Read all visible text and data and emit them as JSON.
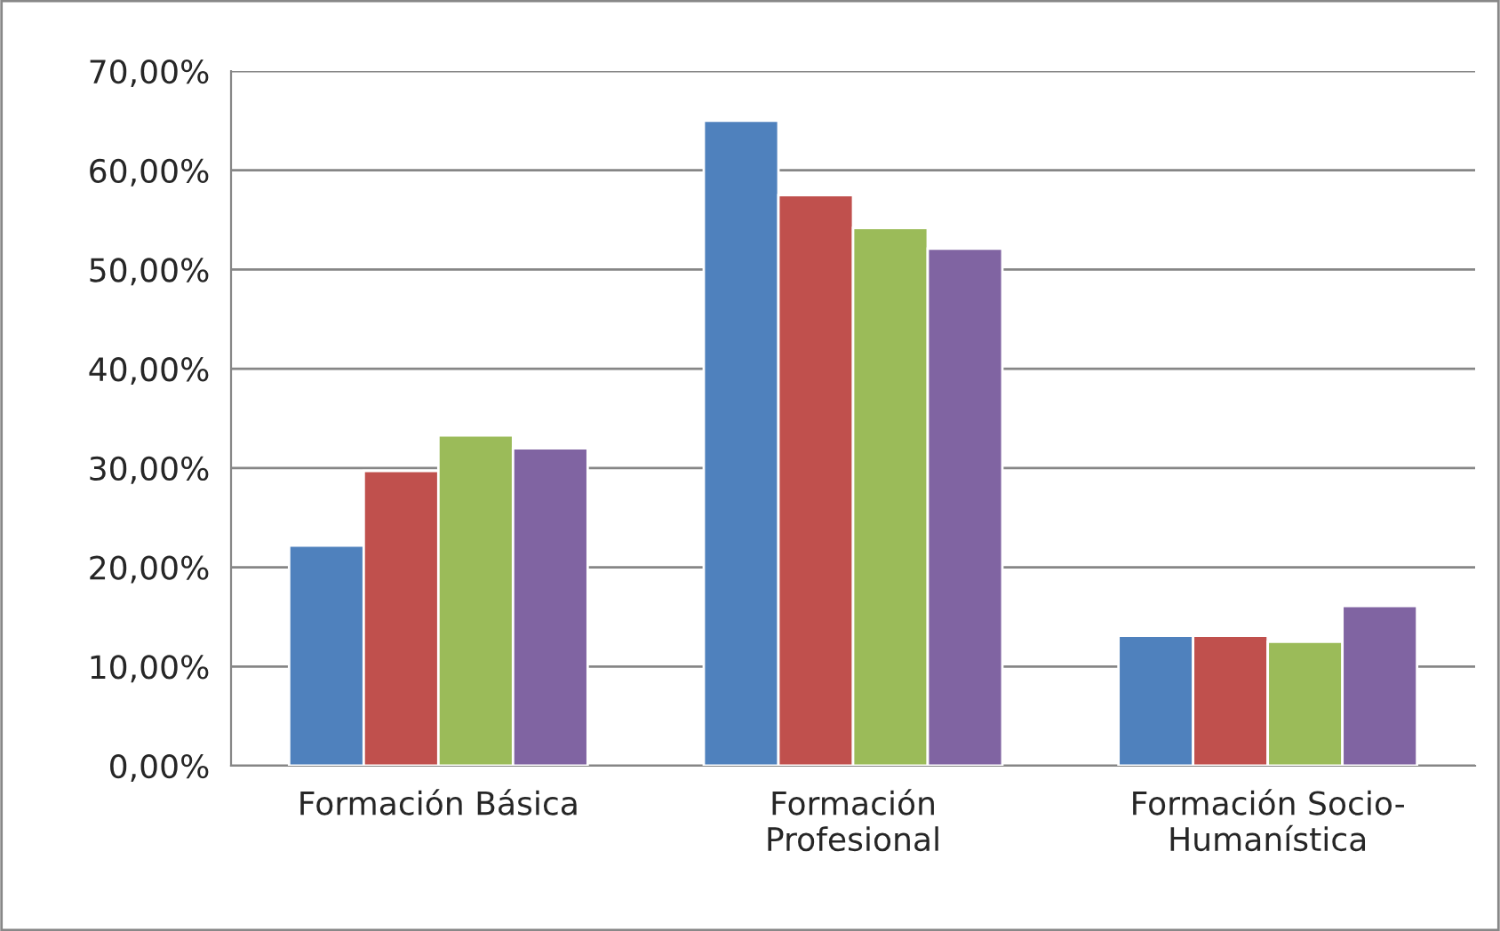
{
  "chart_data": {
    "type": "bar",
    "categories": [
      "Formación Básica",
      "Formación\nProfesional",
      "Formación Socio-\nHumanística"
    ],
    "series": [
      {
        "color": "#4f81bd",
        "values": [
          22.2,
          65.0,
          13.1
        ]
      },
      {
        "color": "#c0504d",
        "values": [
          29.7,
          57.5,
          13.1
        ]
      },
      {
        "color": "#9bbb59",
        "values": [
          33.3,
          54.2,
          12.5
        ]
      },
      {
        "color": "#8064a2",
        "values": [
          32.0,
          52.1,
          16.1
        ]
      }
    ],
    "ylim": [
      0,
      70
    ],
    "yticks": [
      {
        "value": 0,
        "label": "0,00%"
      },
      {
        "value": 10,
        "label": "10,00%"
      },
      {
        "value": 20,
        "label": "20,00%"
      },
      {
        "value": 30,
        "label": "30,00%"
      },
      {
        "value": 40,
        "label": "40,00%"
      },
      {
        "value": 50,
        "label": "50,00%"
      },
      {
        "value": 60,
        "label": "60,00%"
      },
      {
        "value": 70,
        "label": "70,00%"
      }
    ],
    "grid": "y",
    "legend": false
  }
}
